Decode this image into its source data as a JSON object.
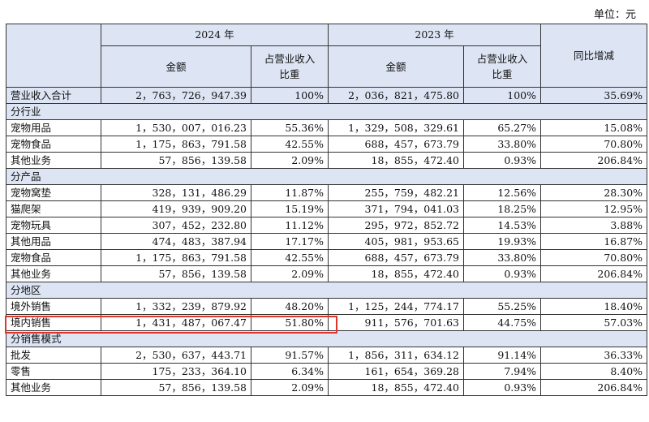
{
  "unit_label": "单位：元",
  "header": {
    "year_2024": "2024 年",
    "year_2023": "2023 年",
    "amount_2024": "金额",
    "ratio_2024": "占营业收入\n比重",
    "amount_2023": "金额",
    "ratio_2023": "占营业收入\n比重",
    "yoy": "同比增减"
  },
  "total": {
    "label": "营业收入合计",
    "amt24": "2，763，726，947.39",
    "pct24": "100%",
    "amt23": "2，036，821，475.80",
    "pct23": "100%",
    "yoy": "35.69%"
  },
  "sections": [
    {
      "title": "分行业",
      "rows": [
        {
          "label": "宠物用品",
          "amt24": "1，530，007，016.23",
          "pct24": "55.36%",
          "amt23": "1，329，508，329.61",
          "pct23": "65.27%",
          "yoy": "15.08%"
        },
        {
          "label": "宠物食品",
          "amt24": "1，175，863，791.58",
          "pct24": "42.55%",
          "amt23": "688，457，673.79",
          "pct23": "33.80%",
          "yoy": "70.80%"
        },
        {
          "label": "其他业务",
          "amt24": "57，856，139.58",
          "pct24": "2.09%",
          "amt23": "18，855，472.40",
          "pct23": "0.93%",
          "yoy": "206.84%"
        }
      ]
    },
    {
      "title": "分产品",
      "rows": [
        {
          "label": "宠物窝垫",
          "amt24": "328，131，486.29",
          "pct24": "11.87%",
          "amt23": "255，759，482.21",
          "pct23": "12.56%",
          "yoy": "28.30%"
        },
        {
          "label": "猫爬架",
          "amt24": "419，939，909.20",
          "pct24": "15.19%",
          "amt23": "371，794，041.03",
          "pct23": "18.25%",
          "yoy": "12.95%"
        },
        {
          "label": "宠物玩具",
          "amt24": "307，452，232.80",
          "pct24": "11.12%",
          "amt23": "295，972，852.72",
          "pct23": "14.53%",
          "yoy": "3.88%"
        },
        {
          "label": "其他用品",
          "amt24": "474，483，387.94",
          "pct24": "17.17%",
          "amt23": "405，981，953.65",
          "pct23": "19.93%",
          "yoy": "16.87%"
        },
        {
          "label": "宠物食品",
          "amt24": "1，175，863，791.58",
          "pct24": "42.55%",
          "amt23": "688，457，673.79",
          "pct23": "33.80%",
          "yoy": "70.80%"
        },
        {
          "label": "其他业务",
          "amt24": "57，856，139.58",
          "pct24": "2.09%",
          "amt23": "18，855，472.40",
          "pct23": "0.93%",
          "yoy": "206.84%"
        }
      ]
    },
    {
      "title": "分地区",
      "rows": [
        {
          "label": "境外销售",
          "amt24": "1，332，239，879.92",
          "pct24": "48.20%",
          "amt23": "1，125，244，774.17",
          "pct23": "55.25%",
          "yoy": "18.40%"
        },
        {
          "label": "境内销售",
          "amt24": "1，431，487，067.47",
          "pct24": "51.80%",
          "amt23": "911，576，701.63",
          "pct23": "44.75%",
          "yoy": "57.03%"
        }
      ]
    },
    {
      "title": "分销售模式",
      "rows": [
        {
          "label": "批发",
          "amt24": "2，530，637，443.71",
          "pct24": "91.57%",
          "amt23": "1，856，311，634.12",
          "pct23": "91.14%",
          "yoy": "36.33%"
        },
        {
          "label": "零售",
          "amt24": "175，233，364.10",
          "pct24": "6.34%",
          "amt23": "161，654，369.28",
          "pct23": "7.94%",
          "yoy": "8.40%"
        },
        {
          "label": "其他业务",
          "amt24": "57，856，139.58",
          "pct24": "2.09%",
          "amt23": "18，855，472.40",
          "pct23": "0.93%",
          "yoy": "206.84%"
        }
      ]
    }
  ],
  "colors": {
    "header_bg": "#dde5f4",
    "highlight": "#e0352b"
  }
}
